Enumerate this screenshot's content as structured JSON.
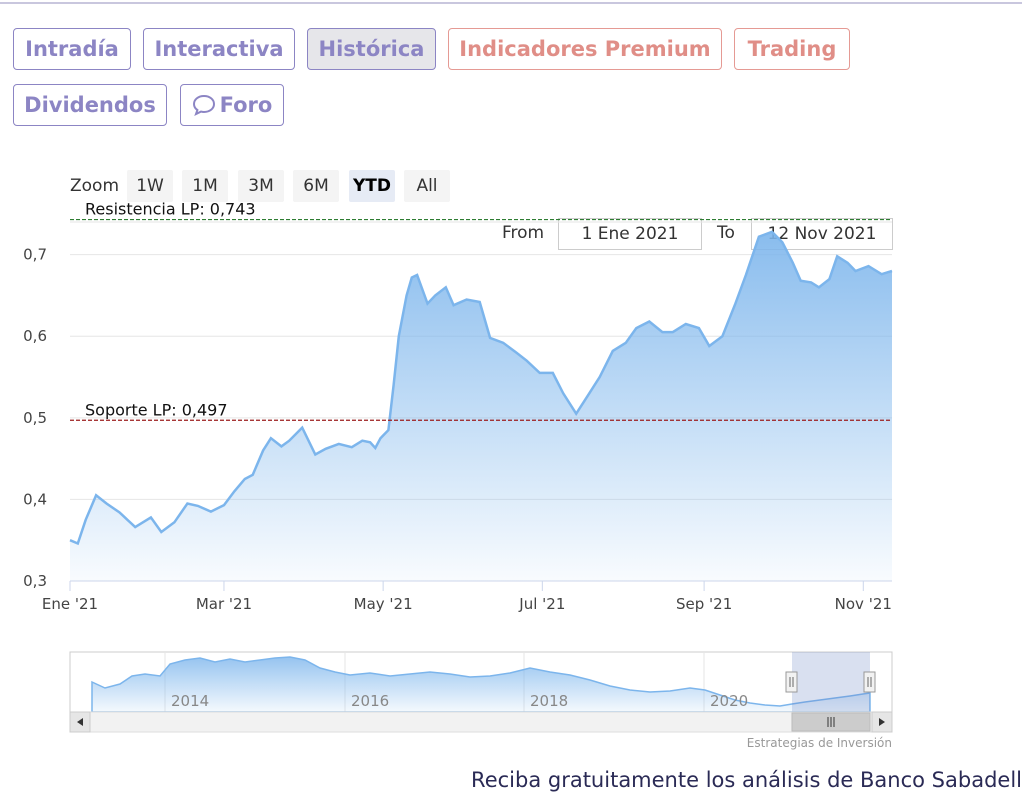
{
  "tabs": [
    {
      "label": "Intradía",
      "state": "normal"
    },
    {
      "label": "Interactiva",
      "state": "normal"
    },
    {
      "label": "Histórica",
      "state": "active"
    },
    {
      "label": "Indicadores Premium",
      "state": "premium"
    },
    {
      "label": "Trading",
      "state": "premium"
    },
    {
      "label": "Dividendos",
      "state": "normal"
    },
    {
      "label": "Foro",
      "state": "normal",
      "icon": "chat-bubble-icon"
    }
  ],
  "zoom": {
    "label": "Zoom",
    "buttons": [
      "1W",
      "1M",
      "3M",
      "6M",
      "YTD",
      "All"
    ],
    "selected": "YTD"
  },
  "range": {
    "from_label": "From",
    "from_value": "1 Ene 2021",
    "to_label": "To",
    "to_value": "12 Nov 2021"
  },
  "colors": {
    "tab": "#8c85c4",
    "premium": "#e08e87",
    "series": "#7cb5ec",
    "resistance": "#2e7d32",
    "support": "#9b1c1c"
  },
  "chart_data": {
    "type": "area",
    "y_ticks": [
      "0,3",
      "0,4",
      "0,5",
      "0,6",
      "0,7"
    ],
    "ylim": [
      0.3,
      0.74
    ],
    "x_ticks": [
      "Ene '21",
      "Mar '21",
      "May '21",
      "Jul '21",
      "Sep '21",
      "Nov '21"
    ],
    "x_range": [
      "2021-01-01",
      "2021-11-12"
    ],
    "grid": true,
    "annotations": [
      {
        "label": "Resistencia LP: 0,743",
        "value": 0.743
      },
      {
        "label": "Soporte LP: 0,497",
        "value": 0.497
      }
    ],
    "series": [
      {
        "x": [
          "2021-01-01",
          "2021-01-04",
          "2021-01-07",
          "2021-01-11",
          "2021-01-15",
          "2021-01-20",
          "2021-01-26",
          "2021-02-01",
          "2021-02-05",
          "2021-02-10",
          "2021-02-15",
          "2021-02-19",
          "2021-02-24",
          "2021-03-01",
          "2021-03-05",
          "2021-03-09",
          "2021-03-12",
          "2021-03-16",
          "2021-03-19",
          "2021-03-23",
          "2021-03-26",
          "2021-03-31",
          "2021-04-05",
          "2021-04-09",
          "2021-04-14",
          "2021-04-19",
          "2021-04-23",
          "2021-04-26",
          "2021-04-28",
          "2021-04-30",
          "2021-05-03",
          "2021-05-05",
          "2021-05-07",
          "2021-05-10",
          "2021-05-12",
          "2021-05-14",
          "2021-05-18",
          "2021-05-21",
          "2021-05-25",
          "2021-05-28",
          "2021-06-02",
          "2021-06-07",
          "2021-06-11",
          "2021-06-16",
          "2021-06-21",
          "2021-06-25",
          "2021-06-30",
          "2021-07-05",
          "2021-07-09",
          "2021-07-14",
          "2021-07-19",
          "2021-07-23",
          "2021-07-28",
          "2021-08-02",
          "2021-08-06",
          "2021-08-11",
          "2021-08-16",
          "2021-08-20",
          "2021-08-25",
          "2021-08-30",
          "2021-09-03",
          "2021-09-08",
          "2021-09-13",
          "2021-09-17",
          "2021-09-22",
          "2021-09-27",
          "2021-10-01",
          "2021-10-05",
          "2021-10-08",
          "2021-10-12",
          "2021-10-15",
          "2021-10-19",
          "2021-10-22",
          "2021-10-26",
          "2021-10-29",
          "2021-11-03",
          "2021-11-08",
          "2021-11-12"
        ],
        "y": [
          0.35,
          0.346,
          0.375,
          0.405,
          0.395,
          0.384,
          0.366,
          0.378,
          0.36,
          0.372,
          0.395,
          0.392,
          0.385,
          0.393,
          0.41,
          0.425,
          0.43,
          0.46,
          0.475,
          0.465,
          0.472,
          0.488,
          0.455,
          0.462,
          0.468,
          0.464,
          0.472,
          0.47,
          0.463,
          0.475,
          0.485,
          0.54,
          0.6,
          0.65,
          0.672,
          0.675,
          0.64,
          0.65,
          0.66,
          0.638,
          0.645,
          0.642,
          0.598,
          0.592,
          0.58,
          0.57,
          0.555,
          0.555,
          0.53,
          0.505,
          0.53,
          0.55,
          0.582,
          0.592,
          0.61,
          0.618,
          0.605,
          0.605,
          0.615,
          0.61,
          0.588,
          0.6,
          0.64,
          0.675,
          0.722,
          0.728,
          0.715,
          0.69,
          0.668,
          0.666,
          0.66,
          0.67,
          0.698,
          0.69,
          0.68,
          0.686,
          0.676,
          0.68
        ]
      }
    ]
  },
  "navigator": {
    "labels": [
      "2014",
      "2016",
      "2018",
      "2020"
    ]
  },
  "credit": "Estrategias de Inversión",
  "cta": "Reciba gratuitamente los análisis de Banco Sabadell"
}
